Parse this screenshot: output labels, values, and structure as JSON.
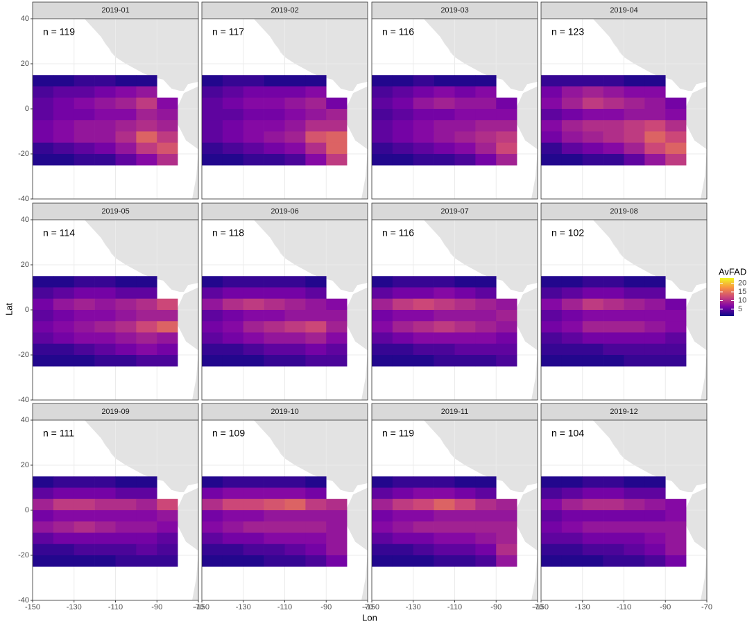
{
  "chart_data": {
    "type": "heatmap",
    "x_label": "Lon",
    "y_label": "Lat",
    "xlim": [
      -150,
      -70
    ],
    "ylim": [
      -40,
      40
    ],
    "xticks": [
      -150,
      -130,
      -110,
      -90,
      -70
    ],
    "yticks": [
      -40,
      -20,
      0,
      20,
      40
    ],
    "grid": true,
    "cell_lon": [
      -150,
      -140,
      -130,
      -120,
      -110,
      -100,
      -90,
      -80
    ],
    "cell_lat": [
      15,
      10,
      5,
      0,
      -5,
      -10,
      -15,
      -20,
      -25
    ],
    "legend_title": "AvFAD",
    "colorlim": [
      1,
      23
    ],
    "colorticks": [
      5,
      10,
      15,
      20
    ],
    "colors": [
      "#0d0887",
      "#7e03a8",
      "#cc4778",
      "#f89540",
      "#f0f921"
    ],
    "land_color": "#e3e3e3",
    "panels": [
      {
        "title": "2019-01",
        "annotation": "n = 119",
        "values": [
          [
            2,
            2,
            3,
            3,
            2,
            2,
            null
          ],
          [
            4,
            5,
            5,
            6,
            7,
            8,
            null
          ],
          [
            5,
            6,
            7,
            8,
            9,
            11,
            7
          ],
          [
            5,
            6,
            6,
            7,
            7,
            9,
            8
          ],
          [
            6,
            7,
            8,
            8,
            9,
            10,
            9
          ],
          [
            6,
            7,
            8,
            8,
            10,
            14,
            11
          ],
          [
            3,
            4,
            5,
            6,
            8,
            11,
            13
          ],
          [
            2,
            2,
            3,
            3,
            5,
            7,
            10
          ]
        ]
      },
      {
        "title": "2019-02",
        "annotation": "n = 117",
        "values": [
          [
            2,
            3,
            3,
            2,
            2,
            2,
            null
          ],
          [
            4,
            5,
            6,
            6,
            6,
            7,
            null
          ],
          [
            5,
            6,
            7,
            7,
            8,
            9,
            6
          ],
          [
            5,
            5,
            6,
            6,
            7,
            8,
            9
          ],
          [
            5,
            6,
            7,
            7,
            8,
            10,
            10
          ],
          [
            5,
            6,
            7,
            8,
            9,
            13,
            14
          ],
          [
            3,
            4,
            5,
            6,
            7,
            10,
            14
          ],
          [
            2,
            2,
            3,
            3,
            4,
            7,
            11
          ]
        ]
      },
      {
        "title": "2019-03",
        "annotation": "n = 116",
        "values": [
          [
            2,
            2,
            3,
            2,
            2,
            2,
            null
          ],
          [
            4,
            5,
            6,
            7,
            6,
            7,
            null
          ],
          [
            5,
            6,
            8,
            9,
            8,
            8,
            6
          ],
          [
            4,
            5,
            6,
            6,
            7,
            7,
            7
          ],
          [
            5,
            6,
            7,
            8,
            8,
            9,
            9
          ],
          [
            5,
            6,
            7,
            8,
            9,
            10,
            11
          ],
          [
            3,
            4,
            5,
            6,
            7,
            9,
            12
          ],
          [
            2,
            2,
            3,
            3,
            4,
            6,
            9
          ]
        ]
      },
      {
        "title": "2019-04",
        "annotation": "n = 123",
        "values": [
          [
            3,
            3,
            3,
            3,
            2,
            2,
            null
          ],
          [
            6,
            8,
            9,
            8,
            7,
            7,
            null
          ],
          [
            7,
            9,
            11,
            10,
            9,
            8,
            6
          ],
          [
            5,
            6,
            7,
            7,
            8,
            8,
            7
          ],
          [
            7,
            9,
            10,
            10,
            11,
            12,
            10
          ],
          [
            6,
            8,
            9,
            10,
            11,
            14,
            12
          ],
          [
            3,
            5,
            6,
            7,
            9,
            12,
            14
          ],
          [
            2,
            2,
            3,
            3,
            5,
            8,
            11
          ]
        ]
      },
      {
        "title": "2019-05",
        "annotation": "n = 114",
        "values": [
          [
            2,
            2,
            3,
            3,
            2,
            2,
            null
          ],
          [
            4,
            5,
            6,
            6,
            5,
            5,
            null
          ],
          [
            6,
            8,
            9,
            8,
            9,
            10,
            12
          ],
          [
            5,
            6,
            7,
            7,
            8,
            9,
            9
          ],
          [
            6,
            7,
            8,
            9,
            10,
            12,
            14
          ],
          [
            5,
            6,
            7,
            7,
            8,
            9,
            8
          ],
          [
            3,
            3,
            4,
            5,
            6,
            7,
            6
          ],
          [
            2,
            2,
            2,
            3,
            3,
            4,
            4
          ]
        ]
      },
      {
        "title": "2019-06",
        "annotation": "n = 118",
        "values": [
          [
            2,
            3,
            3,
            3,
            3,
            2,
            null
          ],
          [
            5,
            6,
            6,
            6,
            6,
            5,
            null
          ],
          [
            8,
            10,
            11,
            10,
            9,
            8,
            7
          ],
          [
            5,
            6,
            7,
            7,
            8,
            8,
            8
          ],
          [
            6,
            7,
            9,
            10,
            11,
            12,
            9
          ],
          [
            5,
            6,
            7,
            8,
            8,
            9,
            7
          ],
          [
            3,
            3,
            4,
            5,
            5,
            6,
            5
          ],
          [
            2,
            2,
            2,
            3,
            3,
            4,
            4
          ]
        ]
      },
      {
        "title": "2019-07",
        "annotation": "n = 116",
        "values": [
          [
            2,
            3,
            3,
            3,
            2,
            2,
            null
          ],
          [
            5,
            6,
            6,
            7,
            6,
            5,
            null
          ],
          [
            9,
            11,
            12,
            11,
            10,
            9,
            8
          ],
          [
            6,
            7,
            7,
            8,
            8,
            8,
            9
          ],
          [
            7,
            9,
            10,
            11,
            10,
            9,
            8
          ],
          [
            5,
            6,
            7,
            7,
            7,
            7,
            6
          ],
          [
            3,
            3,
            4,
            4,
            5,
            5,
            5
          ],
          [
            2,
            2,
            2,
            3,
            3,
            3,
            4
          ]
        ]
      },
      {
        "title": "2019-08",
        "annotation": "n = 102",
        "values": [
          [
            2,
            2,
            3,
            3,
            2,
            2,
            null
          ],
          [
            4,
            5,
            6,
            6,
            5,
            5,
            null
          ],
          [
            7,
            9,
            11,
            10,
            9,
            8,
            6
          ],
          [
            5,
            6,
            7,
            7,
            7,
            7,
            7
          ],
          [
            6,
            7,
            9,
            9,
            9,
            8,
            7
          ],
          [
            4,
            5,
            6,
            6,
            6,
            6,
            5
          ],
          [
            3,
            3,
            3,
            4,
            4,
            4,
            4
          ],
          [
            2,
            2,
            2,
            2,
            3,
            3,
            3
          ]
        ]
      },
      {
        "title": "2019-09",
        "annotation": "n = 111",
        "values": [
          [
            2,
            3,
            3,
            3,
            2,
            2,
            null
          ],
          [
            5,
            6,
            6,
            6,
            5,
            5,
            null
          ],
          [
            9,
            11,
            11,
            10,
            10,
            9,
            12
          ],
          [
            6,
            7,
            7,
            7,
            7,
            7,
            8
          ],
          [
            8,
            9,
            10,
            9,
            8,
            8,
            7
          ],
          [
            5,
            6,
            6,
            6,
            6,
            6,
            5
          ],
          [
            3,
            3,
            4,
            4,
            4,
            5,
            4
          ],
          [
            2,
            2,
            2,
            2,
            3,
            3,
            3
          ]
        ]
      },
      {
        "title": "2019-10",
        "annotation": "n = 109",
        "values": [
          [
            2,
            3,
            3,
            3,
            3,
            2,
            null
          ],
          [
            6,
            7,
            7,
            7,
            7,
            6,
            null
          ],
          [
            10,
            12,
            12,
            13,
            14,
            11,
            10
          ],
          [
            6,
            7,
            7,
            8,
            8,
            8,
            8
          ],
          [
            7,
            8,
            9,
            9,
            9,
            9,
            8
          ],
          [
            5,
            6,
            6,
            7,
            7,
            7,
            8
          ],
          [
            3,
            3,
            4,
            4,
            5,
            6,
            8
          ],
          [
            2,
            2,
            2,
            3,
            3,
            4,
            6
          ]
        ]
      },
      {
        "title": "2019-11",
        "annotation": "n = 119",
        "values": [
          [
            2,
            3,
            3,
            3,
            2,
            2,
            null
          ],
          [
            5,
            6,
            7,
            7,
            6,
            5,
            null
          ],
          [
            9,
            11,
            12,
            14,
            12,
            10,
            9
          ],
          [
            6,
            7,
            7,
            8,
            8,
            8,
            8
          ],
          [
            7,
            8,
            9,
            9,
            9,
            9,
            9
          ],
          [
            5,
            6,
            6,
            7,
            7,
            8,
            9
          ],
          [
            3,
            3,
            4,
            5,
            5,
            6,
            10
          ],
          [
            2,
            2,
            2,
            3,
            3,
            4,
            8
          ]
        ]
      },
      {
        "title": "2019-12",
        "annotation": "n = 104",
        "values": [
          [
            2,
            2,
            3,
            3,
            2,
            2,
            null
          ],
          [
            4,
            5,
            6,
            6,
            5,
            5,
            null
          ],
          [
            7,
            9,
            10,
            10,
            9,
            8,
            7
          ],
          [
            5,
            6,
            6,
            6,
            6,
            6,
            7
          ],
          [
            6,
            7,
            8,
            8,
            8,
            8,
            8
          ],
          [
            5,
            5,
            6,
            6,
            6,
            7,
            8
          ],
          [
            3,
            3,
            4,
            4,
            5,
            6,
            8
          ],
          [
            2,
            2,
            2,
            3,
            3,
            4,
            6
          ]
        ]
      }
    ]
  }
}
